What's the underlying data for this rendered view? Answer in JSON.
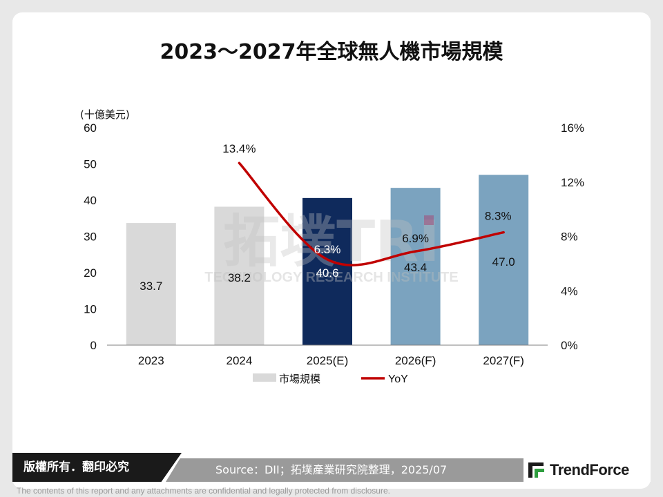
{
  "title": "2023～2027年全球無人機市場規模",
  "chart_data": {
    "type": "bar",
    "categories": [
      "2023",
      "2024",
      "2025(E)",
      "2026(F)",
      "2027(F)"
    ],
    "series": [
      {
        "name": "市場規模",
        "type": "bar",
        "axis": "left",
        "values": [
          33.7,
          38.2,
          40.6,
          43.4,
          47.0
        ],
        "labels": [
          "33.7",
          "38.2",
          "40.6",
          "43.4",
          "47.0"
        ],
        "colors": [
          "#d9d9d9",
          "#d9d9d9",
          "#0f2a5c",
          "#7ba3bf",
          "#7ba3bf"
        ]
      },
      {
        "name": "YoY",
        "type": "line",
        "axis": "right",
        "values": [
          null,
          13.4,
          6.3,
          6.9,
          8.3
        ],
        "labels": [
          "",
          "13.4%",
          "6.3%",
          "6.9%",
          "8.3%"
        ],
        "color": "#c00000"
      }
    ],
    "ylabel": "(十億美元)",
    "ylim": [
      0,
      60
    ],
    "yticks": [
      "0",
      "10",
      "20",
      "30",
      "40",
      "50",
      "60"
    ],
    "y2lim": [
      0,
      16
    ],
    "y2ticks": [
      "0%",
      "4%",
      "8%",
      "12%",
      "16%"
    ],
    "legend_position": "bottom-left",
    "grid": false
  },
  "watermark": "拓墣TRI",
  "watermark_sub": "TECHNOLOGY RESEARCH INSTITUTE",
  "footer": {
    "rights": "版權所有．翻印必究",
    "source": "Source：DII；拓墣產業研究院整理，2025/07",
    "brand": "TrendForce",
    "disclaimer": "The contents of this report and any attachments are confidential and legally protected from disclosure."
  }
}
